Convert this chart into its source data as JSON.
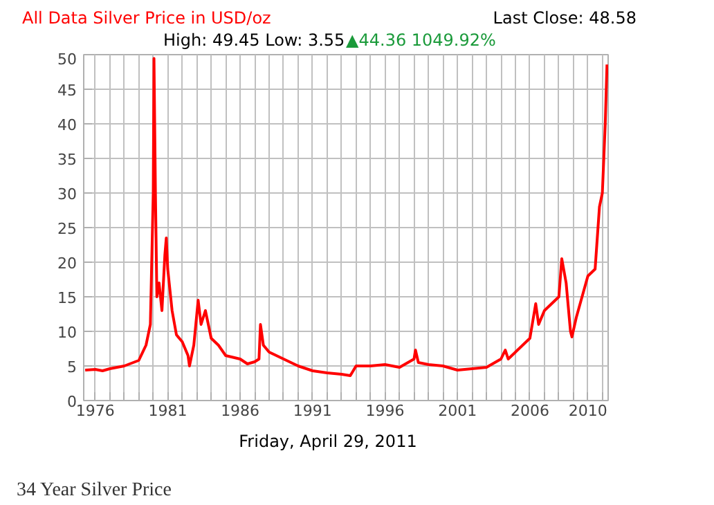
{
  "chart_data": {
    "type": "line",
    "title": "All Data Silver Price in USD/oz",
    "subtitle": "High: 49.45 Low: 3.55",
    "xlabel": "Friday, April 29, 2011",
    "annotations": [
      "Last Close: 48.58",
      "▲44.36 1049.92%",
      "34 Year Silver Price"
    ],
    "x": [
      1975.3,
      1976,
      1976.5,
      1977,
      1978,
      1979,
      1979.5,
      1979.8,
      1980.0,
      1980.05,
      1980.15,
      1980.25,
      1980.4,
      1980.6,
      1980.8,
      1980.9,
      1981.0,
      1981.3,
      1981.6,
      1982,
      1982.4,
      1982.5,
      1982.8,
      1983.1,
      1983.3,
      1983.6,
      1984,
      1984.5,
      1985,
      1986,
      1986.5,
      1987.0,
      1987.3,
      1987.4,
      1987.6,
      1988,
      1989,
      1990,
      1991,
      1992,
      1993,
      1993.6,
      1994,
      1995,
      1996,
      1997,
      1998.0,
      1998.1,
      1998.3,
      1999,
      2000,
      2001,
      2002,
      2003,
      2004,
      2004.3,
      2004.5,
      2005,
      2006,
      2006.4,
      2006.6,
      2007,
      2008,
      2008.2,
      2008.5,
      2008.8,
      2008.9,
      2009.2,
      2010,
      2010.5,
      2010.8,
      2011.0,
      2011.2,
      2011.32
    ],
    "series": [
      {
        "color": "#ff0000",
        "values": [
          4.4,
          4.5,
          4.3,
          4.6,
          5.0,
          5.8,
          8.0,
          11,
          30,
          49.45,
          30,
          15,
          17,
          13,
          21,
          23.5,
          19,
          13,
          9.5,
          8.5,
          6.5,
          5.0,
          8,
          14.5,
          11,
          13,
          9,
          8,
          6.5,
          6,
          5.3,
          5.6,
          6,
          11,
          8,
          7,
          6,
          5,
          4.3,
          4,
          3.8,
          3.6,
          5,
          5,
          5.2,
          4.8,
          6,
          7.3,
          5.5,
          5.2,
          5,
          4.4,
          4.6,
          4.8,
          6,
          7.3,
          6,
          7,
          9,
          14.0,
          11,
          13,
          15,
          20.5,
          17,
          10,
          9.2,
          12,
          18,
          19,
          28,
          30,
          40,
          48.58
        ]
      }
    ],
    "xlim": [
      1975.2,
      2011.4
    ],
    "ylim": [
      0,
      50
    ],
    "xticks": [
      1976,
      {
        "value": 1977,
        "label": null
      },
      {
        "value": 1978,
        "label": null
      },
      {
        "value": 1979,
        "label": null
      },
      {
        "value": 1980,
        "label": null
      },
      1981,
      {
        "value": 1982,
        "label": null
      },
      {
        "value": 1983,
        "label": null
      },
      {
        "value": 1984,
        "label": null
      },
      {
        "value": 1985,
        "label": null
      },
      1986,
      {
        "value": 1987,
        "label": null
      },
      {
        "value": 1988,
        "label": null
      },
      {
        "value": 1989,
        "label": null
      },
      {
        "value": 1990,
        "label": null
      },
      1991,
      {
        "value": 1992,
        "label": null
      },
      {
        "value": 1993,
        "label": null
      },
      {
        "value": 1994,
        "label": null
      },
      {
        "value": 1995,
        "label": null
      },
      1996,
      {
        "value": 1997,
        "label": null
      },
      {
        "value": 1998,
        "label": null
      },
      {
        "value": 1999,
        "label": null
      },
      {
        "value": 2000,
        "label": null
      },
      2001,
      {
        "value": 2002,
        "label": null
      },
      {
        "value": 2003,
        "label": null
      },
      {
        "value": 2004,
        "label": null
      },
      {
        "value": 2005,
        "label": null
      },
      2006,
      {
        "value": 2007,
        "label": null
      },
      {
        "value": 2008,
        "label": null
      },
      {
        "value": 2009,
        "label": null
      },
      2010,
      {
        "value": 2011,
        "label": null
      }
    ],
    "yticks": [
      0,
      5,
      10,
      15,
      20,
      25,
      30,
      35,
      40,
      45,
      50
    ],
    "grid": true,
    "marker": "none",
    "line_style": "solid"
  }
}
